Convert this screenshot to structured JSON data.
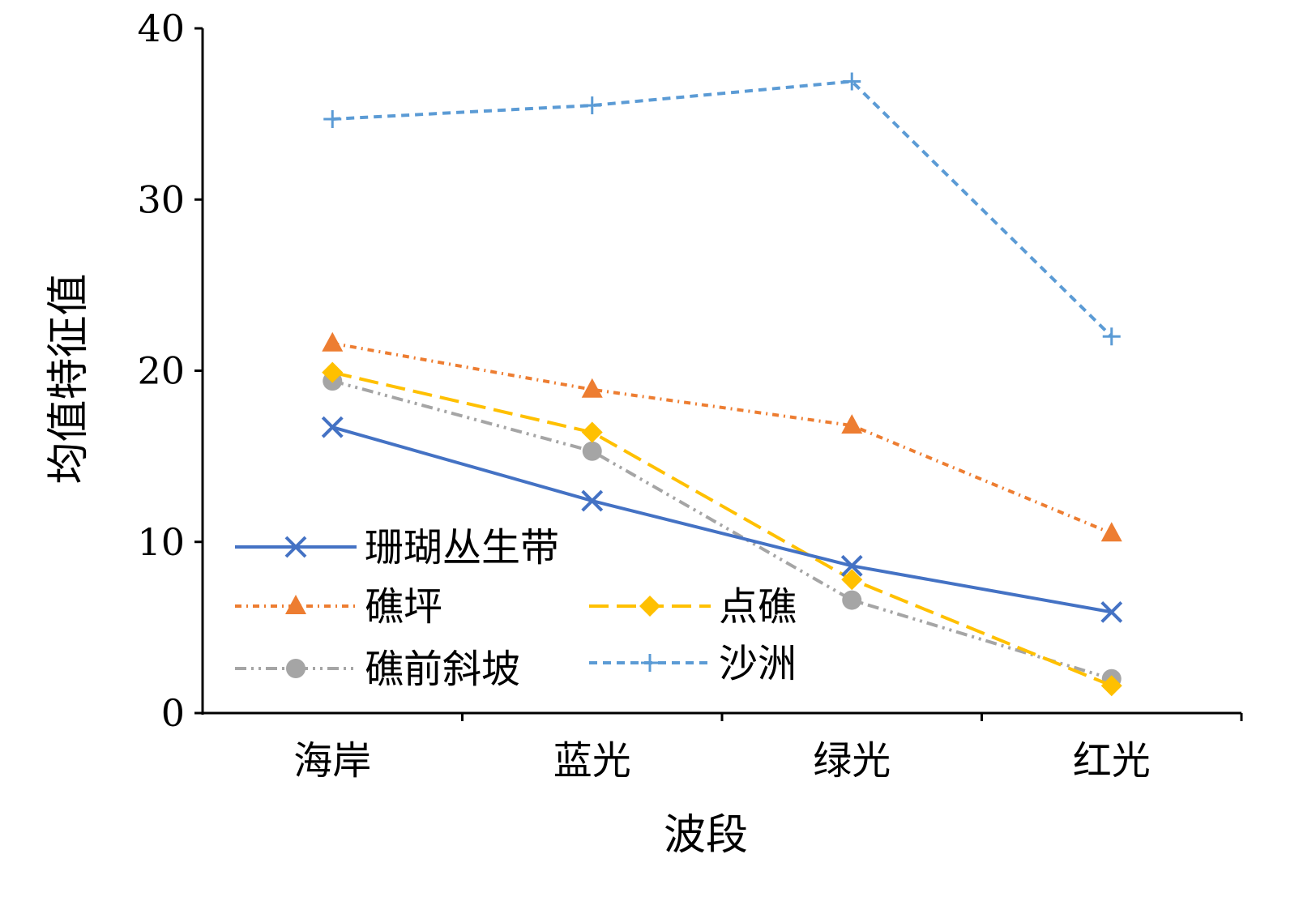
{
  "chart_data": {
    "type": "line",
    "title": "",
    "xlabel": "波段",
    "ylabel": "均值特征值",
    "categories": [
      "海岸",
      "蓝光",
      "绿光",
      "红光"
    ],
    "yticks": [
      0,
      10,
      20,
      30,
      40
    ],
    "ylim": [
      0,
      40
    ],
    "grid": false,
    "legend_position": "bottom-left inside plot",
    "series": [
      {
        "name": "珊瑚丛生带",
        "values": [
          16.7,
          12.4,
          8.6,
          5.9
        ],
        "color": "#4472c4",
        "line_style": "solid",
        "marker": "x"
      },
      {
        "name": "礁坪",
        "values": [
          21.6,
          18.9,
          16.8,
          10.5
        ],
        "color": "#ed7d31",
        "line_style": "dash-dot",
        "marker": "triangle"
      },
      {
        "name": "点礁",
        "values": [
          19.9,
          16.4,
          7.8,
          1.6
        ],
        "color": "#ffc000",
        "line_style": "long-dash",
        "marker": "diamond"
      },
      {
        "name": "礁前斜坡",
        "values": [
          19.4,
          15.3,
          6.6,
          2.0
        ],
        "color": "#a5a5a5",
        "line_style": "dash-dot-dot",
        "marker": "circle"
      },
      {
        "name": "沙洲",
        "values": [
          34.7,
          35.5,
          36.9,
          22.0
        ],
        "color": "#5b9bd5",
        "line_style": "short-dash",
        "marker": "plus"
      }
    ]
  }
}
